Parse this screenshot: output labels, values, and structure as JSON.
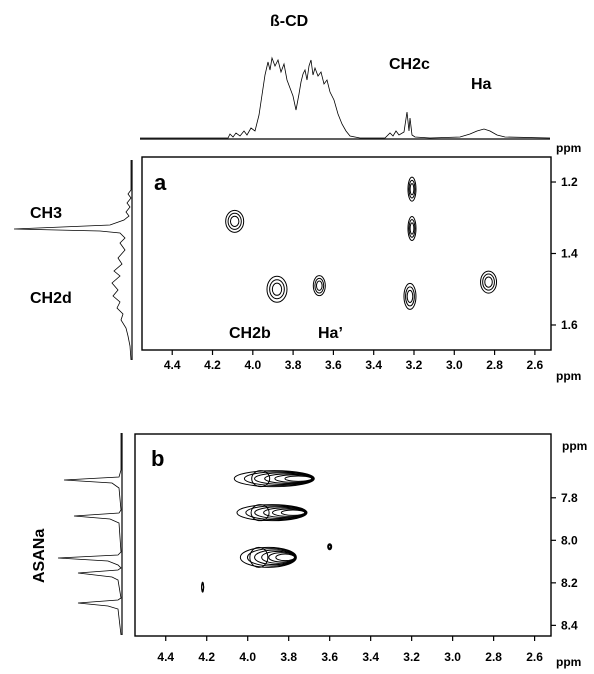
{
  "chart_data": [
    {
      "panel": "a",
      "type": "contour",
      "top_spectrum_labels": [
        "ß-CD",
        "CH2c",
        "Ha"
      ],
      "left_spectrum_labels": [
        "CH3",
        "CH2d"
      ],
      "annotations": [
        "CH2b",
        "Ha’"
      ],
      "x_ticks": [
        "4.4",
        "4.2",
        "4.0",
        "3.8",
        "3.6",
        "3.4",
        "3.2",
        "3.0",
        "2.8",
        "2.6"
      ],
      "x_unit": "ppm",
      "xlim": [
        4.55,
        2.52
      ],
      "y_ticks": [
        "1.2",
        "1.4",
        "1.6"
      ],
      "y_unit": "ppm",
      "ylim": [
        1.13,
        1.67
      ],
      "peaks": [
        {
          "x": 4.09,
          "y": 1.31
        },
        {
          "x": 3.21,
          "y": 1.22
        },
        {
          "x": 3.21,
          "y": 1.33
        },
        {
          "x": 3.88,
          "y": 1.5
        },
        {
          "x": 3.67,
          "y": 1.49
        },
        {
          "x": 3.22,
          "y": 1.52
        },
        {
          "x": 2.83,
          "y": 1.48
        }
      ]
    },
    {
      "panel": "b",
      "type": "contour",
      "left_spectrum_labels": [
        "ASANa"
      ],
      "x_ticks": [
        "4.4",
        "4.2",
        "4.0",
        "3.8",
        "3.6",
        "3.4",
        "3.2",
        "3.0",
        "2.8",
        "2.6"
      ],
      "x_unit": "ppm",
      "xlim": [
        4.55,
        2.52
      ],
      "y_ticks": [
        "7.8",
        "8.0",
        "8.2",
        "8.4"
      ],
      "y_unit": "ppm",
      "ylim": [
        7.5,
        8.45
      ],
      "peaks": [
        {
          "x": 3.8,
          "y": 7.71
        },
        {
          "x": 3.82,
          "y": 7.87
        },
        {
          "x": 3.85,
          "y": 8.08
        },
        {
          "x": 3.6,
          "y": 8.03
        },
        {
          "x": 4.22,
          "y": 8.22
        }
      ]
    }
  ]
}
